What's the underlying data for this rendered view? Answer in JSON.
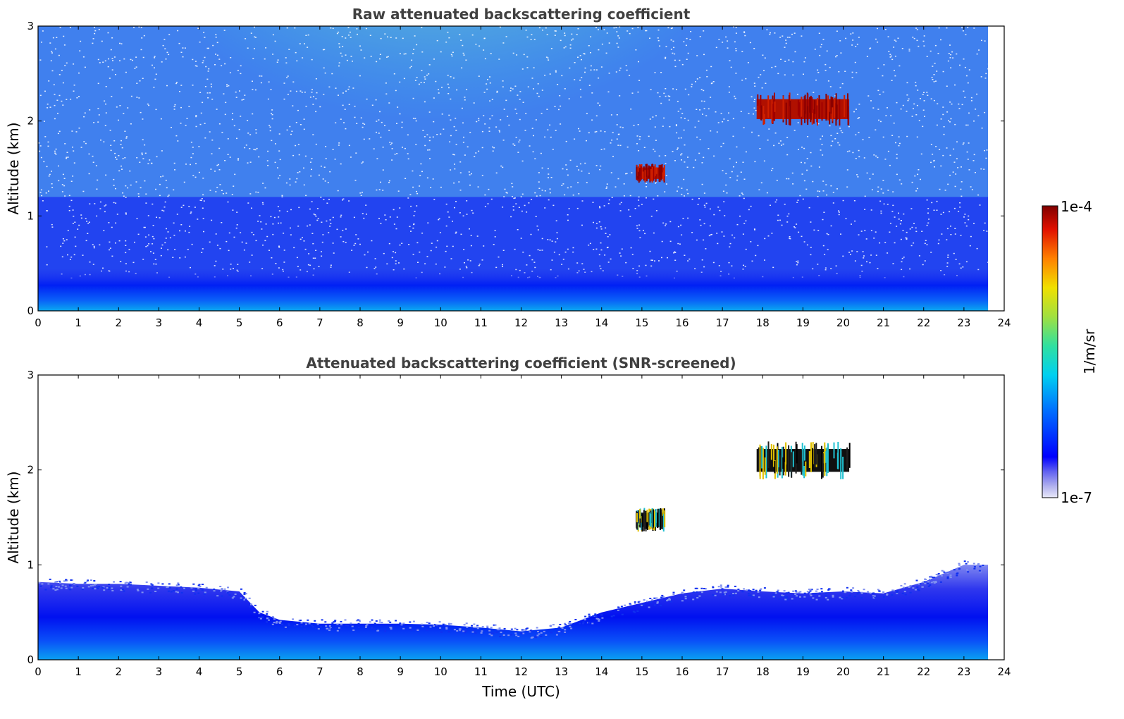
{
  "chart_data": [
    {
      "type": "heatmap",
      "title": "Raw attenuated backscattering coefficient",
      "xlabel": "",
      "ylabel": "Altitude (km)",
      "xlim": [
        0,
        24
      ],
      "ylim": [
        0,
        3
      ],
      "x_ticks": [
        "0",
        "1",
        "2",
        "3",
        "4",
        "5",
        "6",
        "7",
        "8",
        "9",
        "10",
        "11",
        "12",
        "13",
        "14",
        "15",
        "16",
        "17",
        "18",
        "19",
        "20",
        "21",
        "22",
        "23",
        "24"
      ],
      "y_ticks": [
        "0",
        "1",
        "2",
        "3"
      ],
      "data_end_time": 23.6,
      "features": [
        {
          "kind": "surface_layer",
          "description_value": "strong near-surface backscatter",
          "alt_top_km": 0.3
        },
        {
          "kind": "cloud",
          "time_start": 17.85,
          "time_end": 20.15,
          "alt_km": [
            1.95,
            2.3
          ]
        },
        {
          "kind": "cloud",
          "time_start": 14.85,
          "time_end": 15.55,
          "alt_km": [
            1.35,
            1.55
          ]
        },
        {
          "kind": "solar_background",
          "time_start": 5.5,
          "time_end": 14.5,
          "alt_km": [
            1.0,
            3.0
          ]
        }
      ]
    },
    {
      "type": "heatmap",
      "title": "Attenuated backscattering coefficient (SNR-screened)",
      "xlabel": "Time (UTC)",
      "ylabel": "Altitude (km)",
      "xlim": [
        0,
        24
      ],
      "ylim": [
        0,
        3
      ],
      "x_ticks": [
        "0",
        "1",
        "2",
        "3",
        "4",
        "5",
        "6",
        "7",
        "8",
        "9",
        "10",
        "11",
        "12",
        "13",
        "14",
        "15",
        "16",
        "17",
        "18",
        "19",
        "20",
        "21",
        "22",
        "23",
        "24"
      ],
      "y_ticks": [
        "0",
        "1",
        "2",
        "3"
      ],
      "data_end_time": 23.6,
      "boundary_layer_top_km": [
        [
          0,
          0.82
        ],
        [
          1,
          0.8
        ],
        [
          2,
          0.8
        ],
        [
          3,
          0.78
        ],
        [
          4,
          0.76
        ],
        [
          5,
          0.72
        ],
        [
          5.5,
          0.5
        ],
        [
          6,
          0.42
        ],
        [
          7,
          0.38
        ],
        [
          8,
          0.38
        ],
        [
          9,
          0.38
        ],
        [
          10,
          0.37
        ],
        [
          11,
          0.34
        ],
        [
          12,
          0.3
        ],
        [
          13,
          0.34
        ],
        [
          14,
          0.5
        ],
        [
          15,
          0.6
        ],
        [
          16,
          0.7
        ],
        [
          17,
          0.75
        ],
        [
          18,
          0.72
        ],
        [
          19,
          0.7
        ],
        [
          20,
          0.72
        ],
        [
          21,
          0.7
        ],
        [
          22,
          0.82
        ],
        [
          23,
          1.0
        ],
        [
          23.6,
          1.0
        ]
      ],
      "features": [
        {
          "kind": "cloud",
          "time_start": 17.85,
          "time_end": 20.15,
          "alt_km": [
            1.9,
            2.3
          ]
        },
        {
          "kind": "cloud",
          "time_start": 14.85,
          "time_end": 15.55,
          "alt_km": [
            1.35,
            1.6
          ]
        }
      ]
    }
  ],
  "colorbar": {
    "max_label": "1e-4",
    "min_label": "1e-7",
    "units_label": "1/m/sr",
    "colormap": "jet"
  }
}
